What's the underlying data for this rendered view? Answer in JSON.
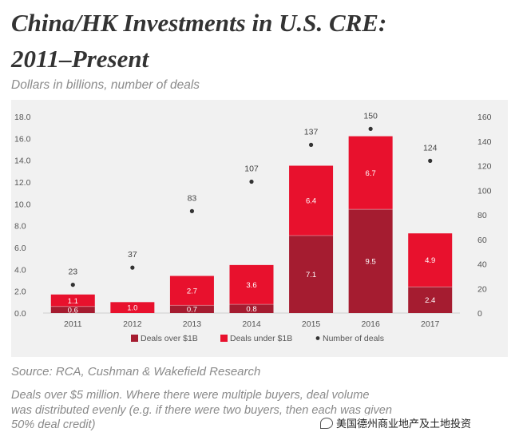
{
  "page": {
    "title_line1": "China/HK Investments in U.S. CRE:",
    "title_line2": "2011–Present",
    "subtitle": "Dollars in billions, number of deals",
    "source": "Source: RCA, Cushman & Wakefield Research",
    "note_line1": "Deals over $5 million. Where there were multiple buyers, deal volume",
    "note_line2": "was distributed evenly (e.g. if there were two buyers, then each was given",
    "note_line3": "50% deal credit)",
    "watermark": "美国德州商业地产及土地投资"
  },
  "colors": {
    "over_1b": "#a51c30",
    "under_1b": "#e8112d",
    "dots": "#333333",
    "panel_bg": "#f1f1f1"
  },
  "chart_data": {
    "type": "bar",
    "stacked": true,
    "categories": [
      "2011",
      "2012",
      "2013",
      "2014",
      "2015",
      "2016",
      "2017"
    ],
    "series": [
      {
        "name": "Deals over $1B",
        "values": [
          0.6,
          null,
          0.7,
          0.8,
          7.1,
          9.5,
          2.4
        ],
        "labels": [
          "0.6",
          "",
          "0.7",
          "0.8",
          "7.1",
          "9.5",
          "2.4"
        ]
      },
      {
        "name": "Deals under $1B",
        "values": [
          1.1,
          1.0,
          2.7,
          3.6,
          6.4,
          6.7,
          4.9
        ],
        "labels": [
          "1.1",
          "1.0",
          "2.7",
          "3.6",
          "6.4",
          "6.7",
          "4.9"
        ]
      }
    ],
    "count_series": {
      "name": "Number of deals",
      "values": [
        23,
        37,
        83,
        107,
        137,
        150,
        124
      ],
      "labels": [
        "23",
        "37",
        "83",
        "107",
        "137",
        "150",
        "124"
      ]
    },
    "y_left": {
      "min": 0,
      "max": 18,
      "ticks": [
        "0.0",
        "2.0",
        "4.0",
        "6.0",
        "8.0",
        "10.0",
        "12.0",
        "14.0",
        "16.0",
        "18.0"
      ]
    },
    "y_right": {
      "min": 0,
      "max": 160,
      "ticks": [
        "0",
        "20",
        "40",
        "60",
        "80",
        "100",
        "120",
        "140",
        "160"
      ]
    },
    "legend": {
      "position": "bottom",
      "items": [
        {
          "label": "Deals over $1B",
          "kind": "square"
        },
        {
          "label": "Deals under $1B",
          "kind": "square"
        },
        {
          "label": "Number of deals",
          "kind": "dot"
        }
      ]
    }
  }
}
